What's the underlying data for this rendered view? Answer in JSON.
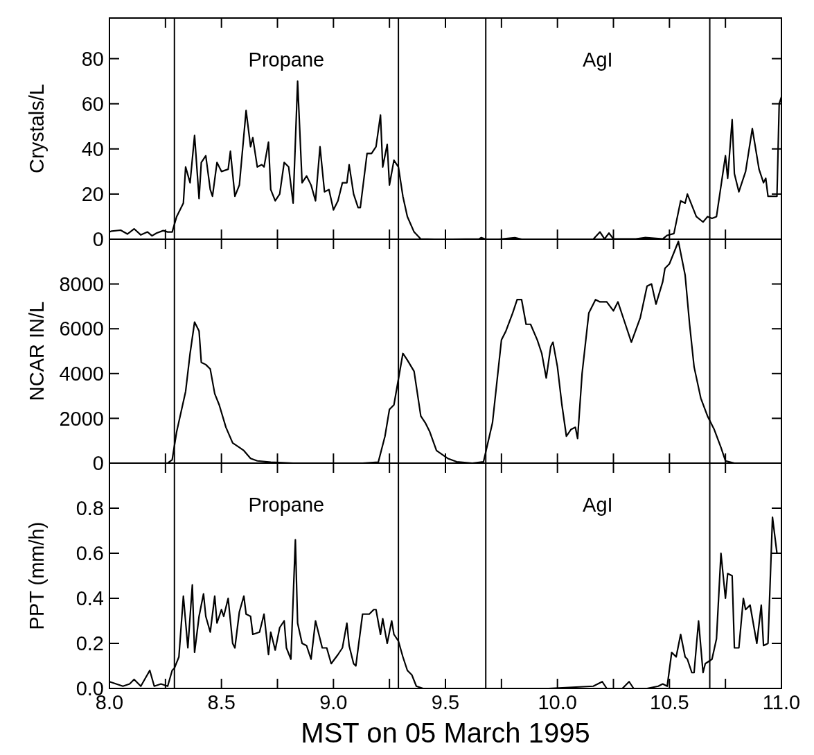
{
  "chart_data": [
    {
      "type": "line",
      "ylabel": "Crystals/L",
      "annotations": [
        "Propane",
        "AgI"
      ],
      "xlim": [
        8,
        11
      ],
      "ylim": [
        0,
        98
      ],
      "yticks": [
        0,
        20,
        40,
        60,
        80
      ],
      "xticks": [
        {
          "value": 8,
          "label": null
        },
        {
          "value": 8.25,
          "label": null
        },
        {
          "value": 8.5,
          "label": null
        },
        {
          "value": 8.75,
          "label": null
        },
        {
          "value": 9,
          "label": null
        },
        {
          "value": 9.25,
          "label": null
        },
        {
          "value": 9.5,
          "label": null
        },
        {
          "value": 9.75,
          "label": null
        },
        {
          "value": 10,
          "label": null
        },
        {
          "value": 10.25,
          "label": null
        },
        {
          "value": 10.5,
          "label": null
        },
        {
          "value": 10.75,
          "label": null
        },
        {
          "value": 11,
          "label": null
        }
      ],
      "tick_labels": "y",
      "ref_lines": [
        {
          "axis": "x",
          "value": 8.29,
          "color": "#000000"
        },
        {
          "axis": "x",
          "value": 9.29,
          "color": "#000000"
        },
        {
          "axis": "x",
          "value": 9.68,
          "color": "#000000"
        },
        {
          "axis": "x",
          "value": 10.68,
          "color": "#000000"
        }
      ],
      "series": [
        {
          "color": "#000000",
          "x": [
            8.0,
            8.01,
            8.05,
            8.08,
            8.11,
            8.14,
            8.17,
            8.19,
            8.21,
            8.24,
            8.26,
            8.28,
            8.3,
            8.33,
            8.34,
            8.36,
            8.38,
            8.4,
            8.41,
            8.43,
            8.45,
            8.46,
            8.48,
            8.5,
            8.53,
            8.54,
            8.56,
            8.58,
            8.61,
            8.63,
            8.64,
            8.66,
            8.68,
            8.69,
            8.71,
            8.72,
            8.74,
            8.76,
            8.78,
            8.8,
            8.82,
            8.84,
            8.86,
            8.88,
            8.9,
            8.92,
            8.94,
            8.96,
            8.98,
            9.0,
            9.02,
            9.04,
            9.06,
            9.07,
            9.09,
            9.11,
            9.12,
            9.15,
            9.17,
            9.19,
            9.21,
            9.22,
            9.24,
            9.25,
            9.27,
            9.29,
            9.31,
            9.33,
            9.36,
            9.39,
            9.45,
            9.53,
            9.65,
            9.66,
            9.68,
            9.74,
            9.81,
            9.84,
            9.94,
            9.98,
            10.06,
            10.16,
            10.19,
            10.21,
            10.23,
            10.25,
            10.35,
            10.39,
            10.47,
            10.49,
            10.52,
            10.55,
            10.57,
            10.58,
            10.6,
            10.62,
            10.65,
            10.67,
            10.69,
            10.71,
            10.75,
            10.76,
            10.78,
            10.79,
            10.81,
            10.84,
            10.87,
            10.9,
            10.92,
            10.93,
            10.94,
            10.98,
            10.99,
            11.0
          ],
          "values": [
            3.2,
            3.6,
            4.0,
            2.3,
            4.6,
            1.9,
            3.2,
            1.5,
            2.7,
            3.8,
            3.2,
            3.2,
            10,
            16,
            32,
            25,
            46,
            18,
            34,
            37,
            22,
            19,
            34,
            30,
            31,
            39,
            19,
            24,
            57,
            41,
            45,
            32,
            33,
            32,
            43,
            22,
            17,
            20,
            34,
            32,
            16,
            70,
            25,
            28,
            24,
            17,
            41,
            21,
            22,
            13,
            17,
            25,
            25,
            33,
            20,
            14,
            14,
            38,
            38,
            41,
            55,
            32,
            42,
            24,
            35,
            32,
            19,
            10,
            3.2,
            0.1,
            0,
            0,
            0.1,
            0.7,
            0,
            0,
            0.7,
            0,
            0,
            0,
            0,
            0,
            3.2,
            0.1,
            2.7,
            0.1,
            0.1,
            0.7,
            0.1,
            1.7,
            2.5,
            17,
            16,
            20,
            15,
            10,
            7.6,
            10,
            9.2,
            10,
            37,
            27,
            53,
            29,
            21,
            30,
            49,
            31,
            25,
            27,
            19,
            19,
            60,
            63
          ]
        }
      ]
    },
    {
      "type": "line",
      "ylabel": "NCAR IN/L",
      "xlim": [
        8,
        11
      ],
      "ylim": [
        0,
        10000
      ],
      "yticks": [
        0,
        2000,
        4000,
        6000,
        8000
      ],
      "xticks": [
        {
          "value": 8,
          "label": null
        },
        {
          "value": 8.25,
          "label": null
        },
        {
          "value": 8.5,
          "label": null
        },
        {
          "value": 8.75,
          "label": null
        },
        {
          "value": 9,
          "label": null
        },
        {
          "value": 9.25,
          "label": null
        },
        {
          "value": 9.5,
          "label": null
        },
        {
          "value": 9.75,
          "label": null
        },
        {
          "value": 10,
          "label": null
        },
        {
          "value": 10.25,
          "label": null
        },
        {
          "value": 10.5,
          "label": null
        },
        {
          "value": 10.75,
          "label": null
        },
        {
          "value": 11,
          "label": null
        }
      ],
      "tick_labels": "y",
      "ref_lines": [
        {
          "axis": "x",
          "value": 8.29,
          "color": "#000000"
        },
        {
          "axis": "x",
          "value": 9.29,
          "color": "#000000"
        },
        {
          "axis": "x",
          "value": 9.68,
          "color": "#000000"
        },
        {
          "axis": "x",
          "value": 10.68,
          "color": "#000000"
        }
      ],
      "series": [
        {
          "color": "#000000",
          "x": [
            8.0,
            8.26,
            8.28,
            8.3,
            8.34,
            8.36,
            8.38,
            8.4,
            8.41,
            8.43,
            8.45,
            8.47,
            8.49,
            8.52,
            8.55,
            8.58,
            8.6,
            8.63,
            8.66,
            8.72,
            8.82,
            9.13,
            9.2,
            9.23,
            9.25,
            9.27,
            9.31,
            9.33,
            9.36,
            9.39,
            9.41,
            9.43,
            9.46,
            9.48,
            9.51,
            9.55,
            9.62,
            9.67,
            9.71,
            9.75,
            9.77,
            9.8,
            9.82,
            9.84,
            9.86,
            9.88,
            9.91,
            9.93,
            9.95,
            9.97,
            9.98,
            10.0,
            10.02,
            10.04,
            10.06,
            10.08,
            10.09,
            10.11,
            10.14,
            10.17,
            10.19,
            10.22,
            10.25,
            10.27,
            10.3,
            10.33,
            10.37,
            10.4,
            10.42,
            10.44,
            10.47,
            10.48,
            10.5,
            10.54,
            10.57,
            10.59,
            10.61,
            10.64,
            10.67,
            10.7,
            10.73,
            10.75,
            10.79,
            11.0
          ],
          "values": [
            0,
            0,
            150,
            1400,
            3200,
            4900,
            6300,
            5900,
            4500,
            4400,
            4200,
            3100,
            2600,
            1600,
            900,
            700,
            560,
            210,
            100,
            40,
            0,
            0,
            40,
            1200,
            2400,
            2600,
            4900,
            4600,
            4100,
            2100,
            1800,
            1400,
            560,
            420,
            210,
            60,
            0,
            60,
            1800,
            5500,
            5900,
            6700,
            7300,
            7300,
            6200,
            6200,
            5500,
            4900,
            3800,
            5200,
            5400,
            4300,
            2600,
            1200,
            1500,
            1600,
            1100,
            4000,
            6700,
            7300,
            7200,
            7200,
            6800,
            7200,
            6300,
            5400,
            6500,
            7900,
            8000,
            7100,
            8100,
            8700,
            8900,
            9900,
            8400,
            6200,
            4300,
            2900,
            2100,
            1500,
            700,
            100,
            0,
            0
          ]
        }
      ]
    },
    {
      "type": "line",
      "ylabel": "PPT (mm/h)",
      "xlabel": "MST on 05 March 1995",
      "annotations": [
        "Propane",
        "AgI"
      ],
      "xlim": [
        8,
        11
      ],
      "ylim": [
        0,
        1
      ],
      "yticks": [
        {
          "value": 0,
          "label": "0.0"
        },
        {
          "value": 0.2,
          "label": "0.2"
        },
        {
          "value": 0.4,
          "label": "0.4"
        },
        {
          "value": 0.6,
          "label": "0.6"
        },
        {
          "value": 0.8,
          "label": "0.8"
        }
      ],
      "xticks": [
        {
          "value": 8,
          "label": "8.0"
        },
        {
          "value": 8.25,
          "label": null
        },
        {
          "value": 8.5,
          "label": "8.5"
        },
        {
          "value": 8.75,
          "label": null
        },
        {
          "value": 9,
          "label": "9.0"
        },
        {
          "value": 9.25,
          "label": null
        },
        {
          "value": 9.5,
          "label": "9.5"
        },
        {
          "value": 9.75,
          "label": null
        },
        {
          "value": 10,
          "label": "10.0"
        },
        {
          "value": 10.25,
          "label": null
        },
        {
          "value": 10.5,
          "label": "10.5"
        },
        {
          "value": 10.75,
          "label": null
        },
        {
          "value": 11,
          "label": "11.0"
        }
      ],
      "ref_lines": [
        {
          "axis": "x",
          "value": 8.29,
          "color": "#000000"
        },
        {
          "axis": "x",
          "value": 9.29,
          "color": "#000000"
        },
        {
          "axis": "x",
          "value": 9.68,
          "color": "#000000"
        },
        {
          "axis": "x",
          "value": 10.68,
          "color": "#000000"
        }
      ],
      "series": [
        {
          "color": "#000000",
          "x": [
            8.0,
            8.03,
            8.06,
            8.09,
            8.11,
            8.14,
            8.18,
            8.2,
            8.23,
            8.26,
            8.28,
            8.29,
            8.31,
            8.33,
            8.35,
            8.37,
            8.38,
            8.4,
            8.42,
            8.43,
            8.45,
            8.47,
            8.48,
            8.5,
            8.51,
            8.53,
            8.55,
            8.56,
            8.58,
            8.6,
            8.61,
            8.63,
            8.64,
            8.67,
            8.69,
            8.71,
            8.72,
            8.74,
            8.76,
            8.78,
            8.79,
            8.81,
            8.83,
            8.84,
            8.86,
            8.88,
            8.9,
            8.92,
            8.95,
            8.97,
            8.99,
            9.02,
            9.04,
            9.06,
            9.07,
            9.09,
            9.1,
            9.13,
            9.16,
            9.18,
            9.19,
            9.21,
            9.22,
            9.24,
            9.26,
            9.27,
            9.29,
            9.31,
            9.33,
            9.35,
            9.37,
            9.4,
            9.53,
            9.8,
            9.96,
            10.16,
            10.18,
            10.2,
            10.22,
            10.29,
            10.32,
            10.34,
            10.4,
            10.45,
            10.47,
            10.49,
            10.51,
            10.53,
            10.55,
            10.57,
            10.58,
            10.6,
            10.61,
            10.63,
            10.65,
            10.66,
            10.69,
            10.71,
            10.73,
            10.75,
            10.76,
            10.78,
            10.79,
            10.81,
            10.83,
            10.84,
            10.86,
            10.89,
            10.91,
            10.92,
            10.94,
            10.96,
            10.98
          ],
          "values": [
            0.03,
            0.02,
            0.01,
            0.02,
            0.04,
            0.01,
            0.08,
            0.01,
            0.02,
            0.01,
            0.08,
            0.09,
            0.14,
            0.41,
            0.18,
            0.46,
            0.16,
            0.32,
            0.42,
            0.32,
            0.25,
            0.41,
            0.29,
            0.35,
            0.32,
            0.4,
            0.2,
            0.18,
            0.34,
            0.41,
            0.33,
            0.32,
            0.24,
            0.25,
            0.33,
            0.15,
            0.25,
            0.17,
            0.27,
            0.3,
            0.18,
            0.13,
            0.66,
            0.29,
            0.2,
            0.19,
            0.13,
            0.3,
            0.18,
            0.18,
            0.11,
            0.15,
            0.18,
            0.29,
            0.19,
            0.11,
            0.1,
            0.33,
            0.33,
            0.35,
            0.35,
            0.24,
            0.31,
            0.2,
            0.3,
            0.24,
            0.21,
            0.14,
            0.08,
            0.06,
            0.01,
            0,
            0,
            0,
            0,
            0.01,
            0.02,
            0.03,
            0,
            0,
            0.03,
            0,
            0,
            0.01,
            0.02,
            0.01,
            0.16,
            0.14,
            0.24,
            0.14,
            0.13,
            0.07,
            0.07,
            0.3,
            0.07,
            0.11,
            0.13,
            0.22,
            0.6,
            0.4,
            0.51,
            0.5,
            0.18,
            0.18,
            0.4,
            0.35,
            0.37,
            0.2,
            0.37,
            0.19,
            0.2,
            0.76,
            0.6
          ]
        }
      ]
    }
  ]
}
